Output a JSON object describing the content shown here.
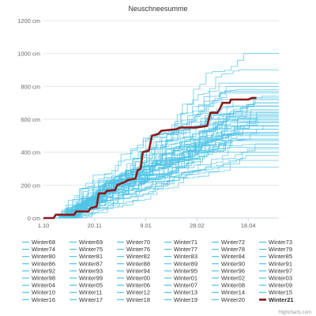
{
  "chart_data": {
    "type": "line",
    "title": "Neuschneesumme",
    "y_unit": "cm",
    "ylim": [
      0,
      1200
    ],
    "yticks": [
      0,
      200,
      400,
      600,
      800,
      1000,
      1200
    ],
    "ytick_labels": [
      "0 cm",
      "200 cm",
      "400 cm",
      "600 cm",
      "800 cm",
      "1000 cm",
      "1200 cm"
    ],
    "x_tick_labels": [
      "1.10",
      "20.11",
      "9.01",
      "28.02",
      "18.04"
    ],
    "x_tick_days": [
      0,
      50,
      100,
      150,
      200
    ],
    "x_range_days": [
      0,
      230
    ],
    "grid": "horizontal",
    "legend_position": "bottom",
    "colors": {
      "winter_series": "#4dc3e6",
      "highlight": "#8b1a1a"
    },
    "series_names": [
      "Winter68",
      "Winter69",
      "Winter70",
      "Winter71",
      "Winter72",
      "Winter73",
      "Winter74",
      "Winter75",
      "Winter76",
      "Winter77",
      "Winter78",
      "Winter79",
      "Winter80",
      "Winter81",
      "Winter82",
      "Winter83",
      "Winter84",
      "Winter85",
      "Winter86",
      "Winter87",
      "Winter88",
      "Winter89",
      "Winter90",
      "Winter91",
      "Winter92",
      "Winter93",
      "Winter94",
      "Winter95",
      "Winter96",
      "Winter97",
      "Winter98",
      "Winter99",
      "Winter00",
      "Winter01",
      "Winter02",
      "Winter03",
      "Winter04",
      "Winter05",
      "Winter06",
      "Winter07",
      "Winter08",
      "Winter09",
      "Winter10",
      "Winter11",
      "Winter12",
      "Winter13",
      "Winter14",
      "Winter15",
      "Winter16",
      "Winter17",
      "Winter18",
      "Winter19",
      "Winter20",
      "Winter21"
    ],
    "final_totals_cm": [
      620,
      470,
      580,
      1000,
      560,
      720,
      310,
      560,
      760,
      500,
      680,
      640,
      540,
      820,
      600,
      450,
      700,
      380,
      590,
      520,
      640,
      770,
      430,
      610,
      660,
      480,
      520,
      730,
      350,
      800,
      580,
      680,
      450,
      740,
      510,
      600,
      630,
      420,
      560,
      700,
      470,
      680,
      600,
      780,
      540,
      400,
      650,
      720,
      560,
      620,
      900,
      480,
      600,
      730
    ],
    "highlight_series": {
      "name": "Winter21",
      "x_days": [
        0,
        10,
        12,
        30,
        32,
        44,
        46,
        52,
        54,
        60,
        62,
        70,
        72,
        80,
        82,
        90,
        92,
        95,
        97,
        103,
        106,
        112,
        115,
        130,
        134,
        150,
        160,
        163,
        170,
        172,
        175,
        182,
        183,
        200,
        204,
        208
      ],
      "y_cm": [
        0,
        0,
        20,
        20,
        40,
        40,
        60,
        70,
        150,
        150,
        165,
        170,
        200,
        220,
        230,
        240,
        290,
        300,
        400,
        410,
        500,
        510,
        530,
        540,
        550,
        550,
        560,
        640,
        640,
        660,
        700,
        700,
        720,
        720,
        730,
        730
      ]
    }
  }
}
